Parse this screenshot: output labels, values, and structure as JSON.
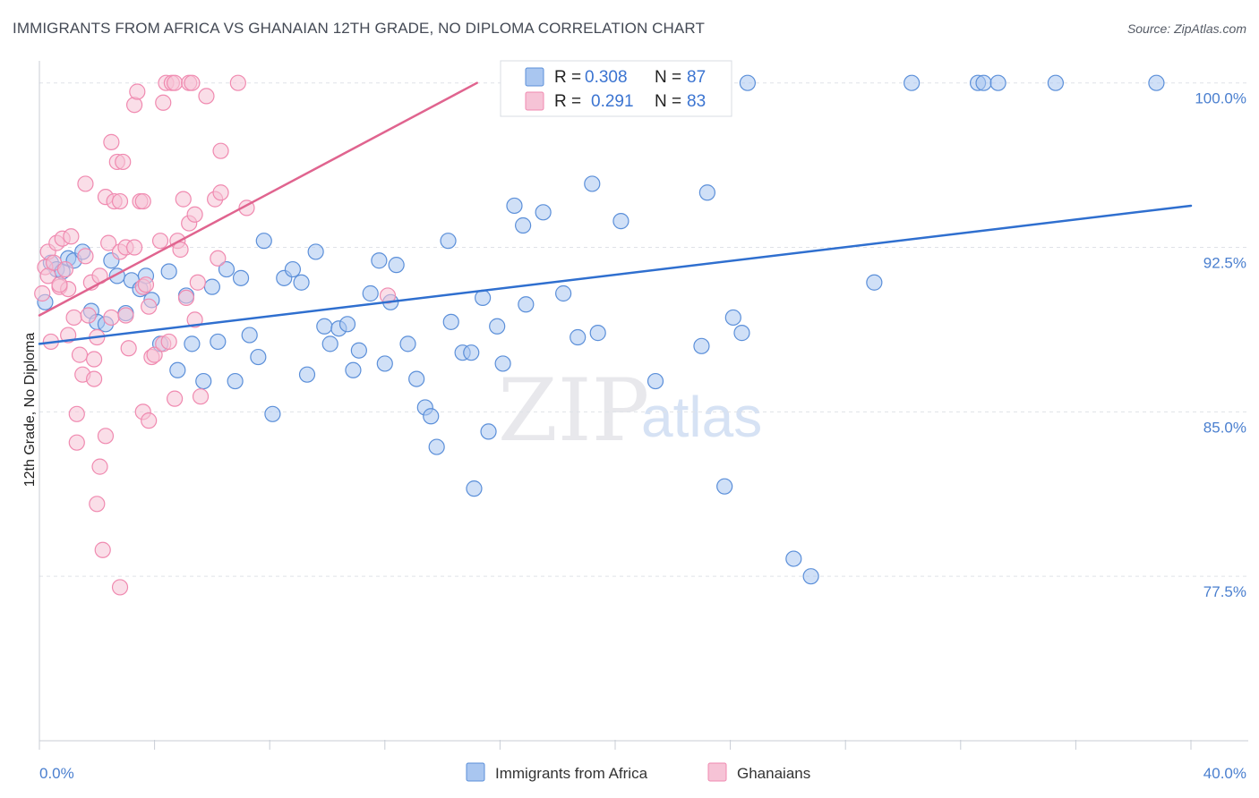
{
  "title": "IMMIGRANTS FROM AFRICA VS GHANAIAN 12TH GRADE, NO DIPLOMA CORRELATION CHART",
  "source": "Source: ZipAtlas.com",
  "watermark": {
    "zip": "ZIP",
    "atlas": "atlas"
  },
  "colors": {
    "blue": "#5b8fd9",
    "blue_fill": "#a9c6f0",
    "blue_line": "#2f6fcf",
    "pink": "#f08ab0",
    "pink_fill": "#f6c3d6",
    "pink_line": "#e0648f",
    "tick_text": "#4a7fcf"
  },
  "chart_data": {
    "type": "scatter",
    "title": "IMMIGRANTS FROM AFRICA VS GHANAIAN 12TH GRADE, NO DIPLOMA CORRELATION CHART",
    "xlabel": "",
    "ylabel": "12th Grade, No Diploma",
    "xlim": [
      0,
      40
    ],
    "ylim": [
      70.0,
      100.6
    ],
    "x_tick_labels": {
      "min": "0.0%",
      "max": "40.0%"
    },
    "y_ticks": [
      {
        "value": 100.0,
        "label": "100.0%"
      },
      {
        "value": 92.5,
        "label": "92.5%"
      },
      {
        "value": 85.0,
        "label": "85.0%"
      },
      {
        "value": 77.5,
        "label": "77.5%"
      }
    ],
    "legend": [
      {
        "name": "Immigrants from Africa",
        "r_label": "R =",
        "r": "0.308",
        "n_label": "N =",
        "n": "87"
      },
      {
        "name": "Ghanaians",
        "r_label": "R =",
        "r": "0.291",
        "n_label": "N =",
        "n": "83"
      }
    ],
    "series": [
      {
        "name": "Immigrants from Africa",
        "color": "#5b8fd9",
        "trend": {
          "x0": 0.0,
          "y0": 88.1,
          "x1": 40.0,
          "y1": 94.4
        },
        "points": [
          [
            0.2,
            90.0
          ],
          [
            0.4,
            91.8
          ],
          [
            0.6,
            91.5
          ],
          [
            0.8,
            91.4
          ],
          [
            1.0,
            92.0
          ],
          [
            1.2,
            91.9
          ],
          [
            1.5,
            92.3
          ],
          [
            1.8,
            89.6
          ],
          [
            2.0,
            89.1
          ],
          [
            2.3,
            89.0
          ],
          [
            2.5,
            91.9
          ],
          [
            2.7,
            91.2
          ],
          [
            3.0,
            89.5
          ],
          [
            3.2,
            91.0
          ],
          [
            3.5,
            90.6
          ],
          [
            3.7,
            91.2
          ],
          [
            3.9,
            90.1
          ],
          [
            4.2,
            88.1
          ],
          [
            4.5,
            91.4
          ],
          [
            4.8,
            86.9
          ],
          [
            5.1,
            90.3
          ],
          [
            5.3,
            88.1
          ],
          [
            5.7,
            86.4
          ],
          [
            6.0,
            90.7
          ],
          [
            6.2,
            88.2
          ],
          [
            6.5,
            91.5
          ],
          [
            6.8,
            86.4
          ],
          [
            7.0,
            91.1
          ],
          [
            7.3,
            88.5
          ],
          [
            7.6,
            87.5
          ],
          [
            7.8,
            92.8
          ],
          [
            8.1,
            84.9
          ],
          [
            8.5,
            91.1
          ],
          [
            8.8,
            91.5
          ],
          [
            9.1,
            90.9
          ],
          [
            9.3,
            86.7
          ],
          [
            9.6,
            92.3
          ],
          [
            9.9,
            88.9
          ],
          [
            10.1,
            88.1
          ],
          [
            10.4,
            88.8
          ],
          [
            10.7,
            89.0
          ],
          [
            10.9,
            86.9
          ],
          [
            11.1,
            87.8
          ],
          [
            11.5,
            90.4
          ],
          [
            11.8,
            91.9
          ],
          [
            12.0,
            87.2
          ],
          [
            12.2,
            90.0
          ],
          [
            12.4,
            91.7
          ],
          [
            12.8,
            88.1
          ],
          [
            13.1,
            86.5
          ],
          [
            13.4,
            85.2
          ],
          [
            13.6,
            84.8
          ],
          [
            13.8,
            83.4
          ],
          [
            14.2,
            92.8
          ],
          [
            14.3,
            89.1
          ],
          [
            14.7,
            87.7
          ],
          [
            15.0,
            87.7
          ],
          [
            15.1,
            81.5
          ],
          [
            15.4,
            90.2
          ],
          [
            15.6,
            84.1
          ],
          [
            15.9,
            88.9
          ],
          [
            16.1,
            87.2
          ],
          [
            16.5,
            94.4
          ],
          [
            16.8,
            93.5
          ],
          [
            16.9,
            89.9
          ],
          [
            17.5,
            94.1
          ],
          [
            18.2,
            90.4
          ],
          [
            18.7,
            88.4
          ],
          [
            19.2,
            95.4
          ],
          [
            19.4,
            88.6
          ],
          [
            20.2,
            93.7
          ],
          [
            21.4,
            86.4
          ],
          [
            23.0,
            88.0
          ],
          [
            23.2,
            95.0
          ],
          [
            23.8,
            81.6
          ],
          [
            24.1,
            89.3
          ],
          [
            24.4,
            88.6
          ],
          [
            24.6,
            100.0
          ],
          [
            26.2,
            78.3
          ],
          [
            26.8,
            77.5
          ],
          [
            29.0,
            90.9
          ],
          [
            30.3,
            100.0
          ],
          [
            32.6,
            100.0
          ],
          [
            32.8,
            100.0
          ],
          [
            33.3,
            100.0
          ],
          [
            35.3,
            100.0
          ],
          [
            38.8,
            100.0
          ]
        ]
      },
      {
        "name": "Ghanaians",
        "color": "#f08ab0",
        "trend": {
          "x0": 0.0,
          "y0": 89.4,
          "x1": 15.2,
          "y1": 100.0
        },
        "points": [
          [
            0.1,
            90.4
          ],
          [
            0.2,
            91.6
          ],
          [
            0.3,
            92.3
          ],
          [
            0.3,
            91.2
          ],
          [
            0.4,
            88.2
          ],
          [
            0.5,
            91.8
          ],
          [
            0.6,
            92.7
          ],
          [
            0.7,
            90.7
          ],
          [
            0.8,
            92.9
          ],
          [
            0.9,
            91.5
          ],
          [
            1.0,
            88.5
          ],
          [
            1.0,
            90.6
          ],
          [
            1.1,
            93.0
          ],
          [
            1.2,
            89.3
          ],
          [
            1.3,
            84.9
          ],
          [
            1.3,
            83.6
          ],
          [
            1.4,
            87.6
          ],
          [
            1.5,
            86.7
          ],
          [
            1.6,
            92.1
          ],
          [
            1.6,
            95.4
          ],
          [
            1.7,
            89.4
          ],
          [
            1.8,
            90.9
          ],
          [
            1.9,
            86.5
          ],
          [
            2.0,
            88.4
          ],
          [
            2.0,
            80.8
          ],
          [
            2.1,
            82.5
          ],
          [
            2.2,
            78.7
          ],
          [
            2.3,
            94.8
          ],
          [
            2.3,
            83.9
          ],
          [
            2.4,
            92.7
          ],
          [
            2.5,
            97.3
          ],
          [
            2.5,
            89.3
          ],
          [
            2.6,
            94.6
          ],
          [
            2.7,
            96.4
          ],
          [
            2.8,
            92.3
          ],
          [
            2.8,
            94.6
          ],
          [
            2.8,
            77.0
          ],
          [
            2.9,
            96.4
          ],
          [
            3.0,
            89.4
          ],
          [
            3.0,
            92.5
          ],
          [
            3.1,
            87.9
          ],
          [
            3.3,
            92.5
          ],
          [
            3.3,
            99.0
          ],
          [
            3.4,
            99.6
          ],
          [
            3.5,
            94.6
          ],
          [
            3.6,
            90.7
          ],
          [
            3.6,
            85.0
          ],
          [
            3.6,
            94.6
          ],
          [
            3.7,
            90.8
          ],
          [
            3.8,
            89.8
          ],
          [
            3.8,
            84.6
          ],
          [
            3.9,
            87.5
          ],
          [
            4.0,
            87.6
          ],
          [
            4.2,
            92.8
          ],
          [
            4.3,
            99.1
          ],
          [
            4.3,
            88.1
          ],
          [
            4.4,
            100.0
          ],
          [
            4.5,
            88.2
          ],
          [
            4.6,
            100.0
          ],
          [
            4.7,
            100.0
          ],
          [
            4.7,
            85.6
          ],
          [
            4.8,
            92.8
          ],
          [
            4.9,
            92.4
          ],
          [
            5.0,
            94.7
          ],
          [
            5.1,
            90.2
          ],
          [
            5.2,
            100.0
          ],
          [
            5.2,
            93.6
          ],
          [
            5.3,
            100.0
          ],
          [
            5.4,
            94.0
          ],
          [
            5.4,
            89.2
          ],
          [
            5.5,
            90.9
          ],
          [
            5.6,
            85.7
          ],
          [
            5.8,
            99.4
          ],
          [
            6.1,
            94.7
          ],
          [
            6.2,
            92.0
          ],
          [
            6.3,
            95.0
          ],
          [
            6.3,
            96.9
          ],
          [
            6.9,
            100.0
          ],
          [
            7.2,
            94.3
          ],
          [
            12.1,
            90.3
          ],
          [
            1.9,
            87.4
          ],
          [
            0.7,
            90.8
          ],
          [
            2.1,
            91.2
          ]
        ]
      }
    ]
  }
}
